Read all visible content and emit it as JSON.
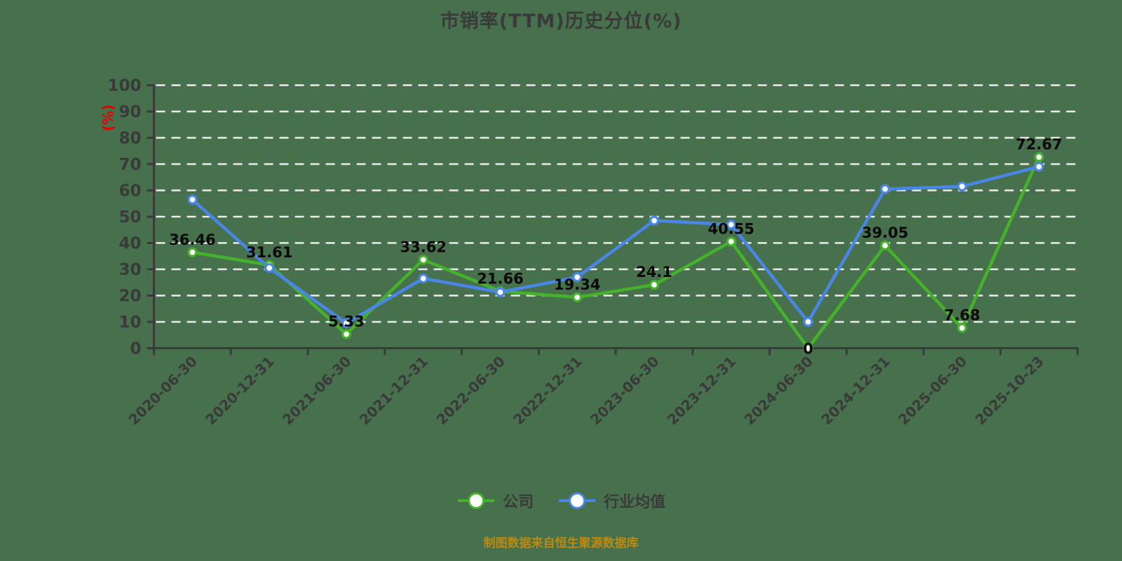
{
  "title": "市销率(TTM)历史分位(%)",
  "y_axis_unit_label": "(%)",
  "footer_note": "制图数据来自恒生聚源数据库",
  "colors": {
    "background": "#47704C",
    "grid": "#ECECEC",
    "axis": "#3A3A3A",
    "tick_label": "#3A3A3A",
    "value_label": "#0A0A0A",
    "company_green": "#46B22C",
    "industry_blue": "#4A86E8",
    "unit_label_red": "#E60000",
    "footer_orange": "#BC8A10",
    "marker_fill": "#FFFFFF"
  },
  "legend": {
    "items": [
      {
        "label": "公司",
        "series_index": 0
      },
      {
        "label": "行业均值",
        "series_index": 1
      }
    ]
  },
  "chart_data": {
    "type": "line",
    "title": "市销率(TTM)历史分位(%)",
    "xlabel": "",
    "ylabel": "(%)",
    "ylim": [
      0,
      100
    ],
    "y_ticks": [
      0,
      10,
      20,
      30,
      40,
      50,
      60,
      70,
      80,
      90,
      100
    ],
    "grid": "horizontal-dashed",
    "legend_position": "bottom",
    "categories": [
      "2020-06-30",
      "2020-12-31",
      "2021-06-30",
      "2021-12-31",
      "2022-06-30",
      "2022-12-31",
      "2023-06-30",
      "2023-12-31",
      "2024-06-30",
      "2024-12-31",
      "2025-06-30",
      "2025-10-23"
    ],
    "series": [
      {
        "name": "公司",
        "color": "#46B22C",
        "values": [
          36.46,
          31.61,
          5.33,
          33.62,
          21.66,
          19.34,
          24.1,
          40.55,
          0,
          39.05,
          7.68,
          72.67
        ],
        "point_labels": [
          "36.46",
          "31.61",
          "5.33",
          "33.62",
          "21.66",
          "19.34",
          "24.1",
          "40.55",
          "0",
          "39.05",
          "7.68",
          "72.67"
        ]
      },
      {
        "name": "行业均值",
        "color": "#4A86E8",
        "values": [
          56.5,
          30.5,
          9.5,
          26.5,
          21.3,
          27,
          48.5,
          47,
          10,
          60.5,
          61.5,
          69
        ],
        "point_labels": null
      }
    ]
  }
}
